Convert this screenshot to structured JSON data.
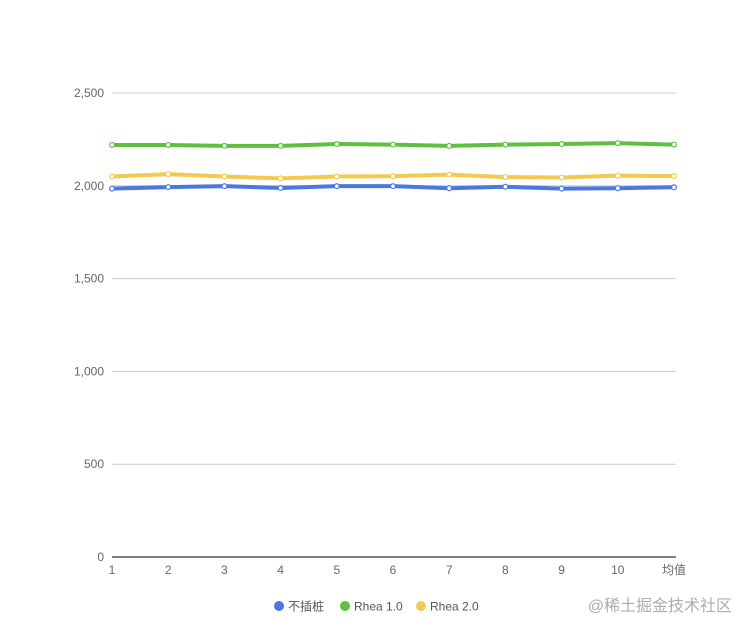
{
  "chart_data": {
    "type": "line",
    "title": "",
    "xlabel": "",
    "ylabel": "",
    "categories": [
      "1",
      "2",
      "3",
      "4",
      "5",
      "6",
      "7",
      "8",
      "9",
      "10",
      "均值"
    ],
    "ylim": [
      0,
      2500
    ],
    "yticks": [
      0,
      500,
      1000,
      1500,
      2000,
      2500
    ],
    "ytick_labels": [
      "0",
      "500",
      "1,000",
      "1,500",
      "2,000",
      "2,500"
    ],
    "grid": true,
    "legend_position": "bottom",
    "series": [
      {
        "name": "不插桩",
        "color": "#4a78e0",
        "values": [
          1985,
          1993,
          1998,
          1988,
          1998,
          1998,
          1987,
          1995,
          1985,
          1987,
          1992
        ]
      },
      {
        "name": "Rhea 1.0",
        "color": "#5fbf3f",
        "values": [
          2220,
          2220,
          2215,
          2215,
          2225,
          2222,
          2215,
          2222,
          2225,
          2230,
          2222
        ]
      },
      {
        "name": "Rhea 2.0",
        "color": "#f3c94f",
        "values": [
          2050,
          2063,
          2050,
          2040,
          2050,
          2052,
          2060,
          2047,
          2045,
          2055,
          2052
        ]
      }
    ]
  },
  "watermark": "@稀土掘金技术社区"
}
